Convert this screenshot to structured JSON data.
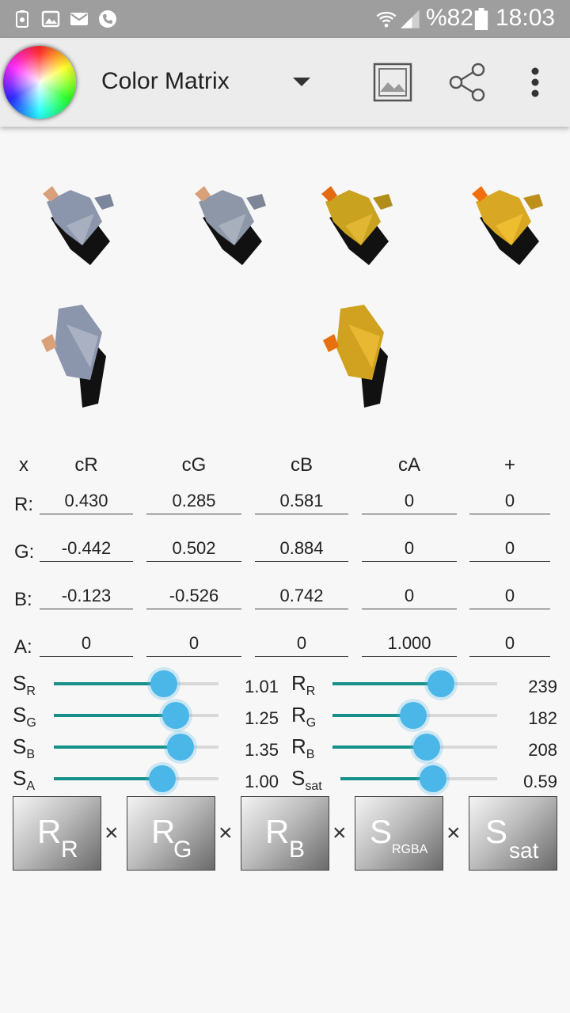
{
  "statusbar": {
    "battery_percent": "%82",
    "time": "18:03"
  },
  "appbar": {
    "title": "Color Matrix"
  },
  "matrix": {
    "corner": "x",
    "headers": [
      "cR",
      "cG",
      "cB",
      "cA",
      "+"
    ],
    "rows": [
      {
        "label": "R:",
        "values": [
          "0.430",
          "0.285",
          "0.581",
          "0",
          "0"
        ]
      },
      {
        "label": "G:",
        "values": [
          "-0.442",
          "0.502",
          "0.884",
          "0",
          "0"
        ]
      },
      {
        "label": "B:",
        "values": [
          "-0.123",
          "-0.526",
          "0.742",
          "0",
          "0"
        ]
      },
      {
        "label": "A:",
        "values": [
          "0",
          "0",
          "0",
          "1.000",
          "0"
        ]
      }
    ]
  },
  "sliders_scale": [
    {
      "symbol": "S",
      "sub": "R",
      "value": "1.01",
      "level": 0.67
    },
    {
      "symbol": "S",
      "sub": "G",
      "value": "1.25",
      "level": 0.74
    },
    {
      "symbol": "S",
      "sub": "B",
      "value": "1.35",
      "level": 0.77
    },
    {
      "symbol": "S",
      "sub": "A",
      "value": "1.00",
      "level": 0.66
    }
  ],
  "sliders_rotate": [
    {
      "symbol": "R",
      "sub": "R",
      "value": "239",
      "level": 0.66
    },
    {
      "symbol": "R",
      "sub": "G",
      "value": "182",
      "level": 0.49
    },
    {
      "symbol": "R",
      "sub": "B",
      "value": "208",
      "level": 0.57
    },
    {
      "symbol": "S",
      "sub": "sat",
      "value": "0.59",
      "level": 0.59
    }
  ],
  "product": {
    "boxes": [
      {
        "big": "R",
        "small": "R"
      },
      {
        "big": "R",
        "small": "G"
      },
      {
        "big": "R",
        "small": "B"
      },
      {
        "big": "S",
        "small": "RGBA"
      },
      {
        "big": "S",
        "small": "sat"
      }
    ],
    "operator": "×"
  }
}
